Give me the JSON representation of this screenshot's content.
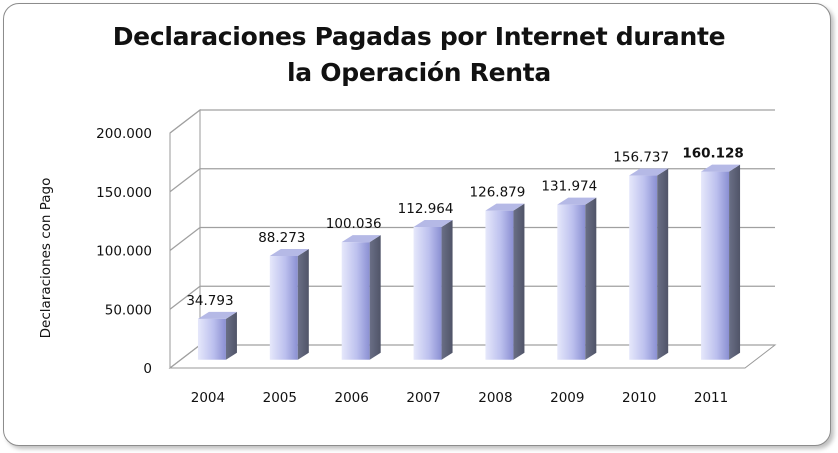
{
  "chart_data": {
    "type": "bar",
    "title_line1": "Declaraciones Pagadas por Internet durante",
    "title_line2": "la Operación Renta",
    "ylabel": "Declaraciones con Pago",
    "xlabel": "",
    "categories": [
      "2004",
      "2005",
      "2006",
      "2007",
      "2008",
      "2009",
      "2010",
      "2011"
    ],
    "values": [
      34793,
      88273,
      100036,
      112964,
      126879,
      131974,
      156737,
      160128
    ],
    "data_labels": [
      "34.793",
      "88.273",
      "100.036",
      "112.964",
      "126.879",
      "131.974",
      "156.737",
      "160.128"
    ],
    "bold_label_index": 7,
    "ylim": [
      0,
      200000
    ],
    "y_ticks": [
      0,
      50000,
      100000,
      150000,
      200000
    ],
    "y_tick_labels": [
      "0",
      "50.000",
      "100.000",
      "150.000",
      "200.000"
    ],
    "grid": true,
    "style": "3d-column",
    "colors": {
      "bar_front_light": "#d8dcf8",
      "bar_front_dark": "#8c90d4",
      "bar_side": "#5f6478",
      "bar_top": "#b8bce6",
      "grid": "#9a9a9a"
    }
  }
}
